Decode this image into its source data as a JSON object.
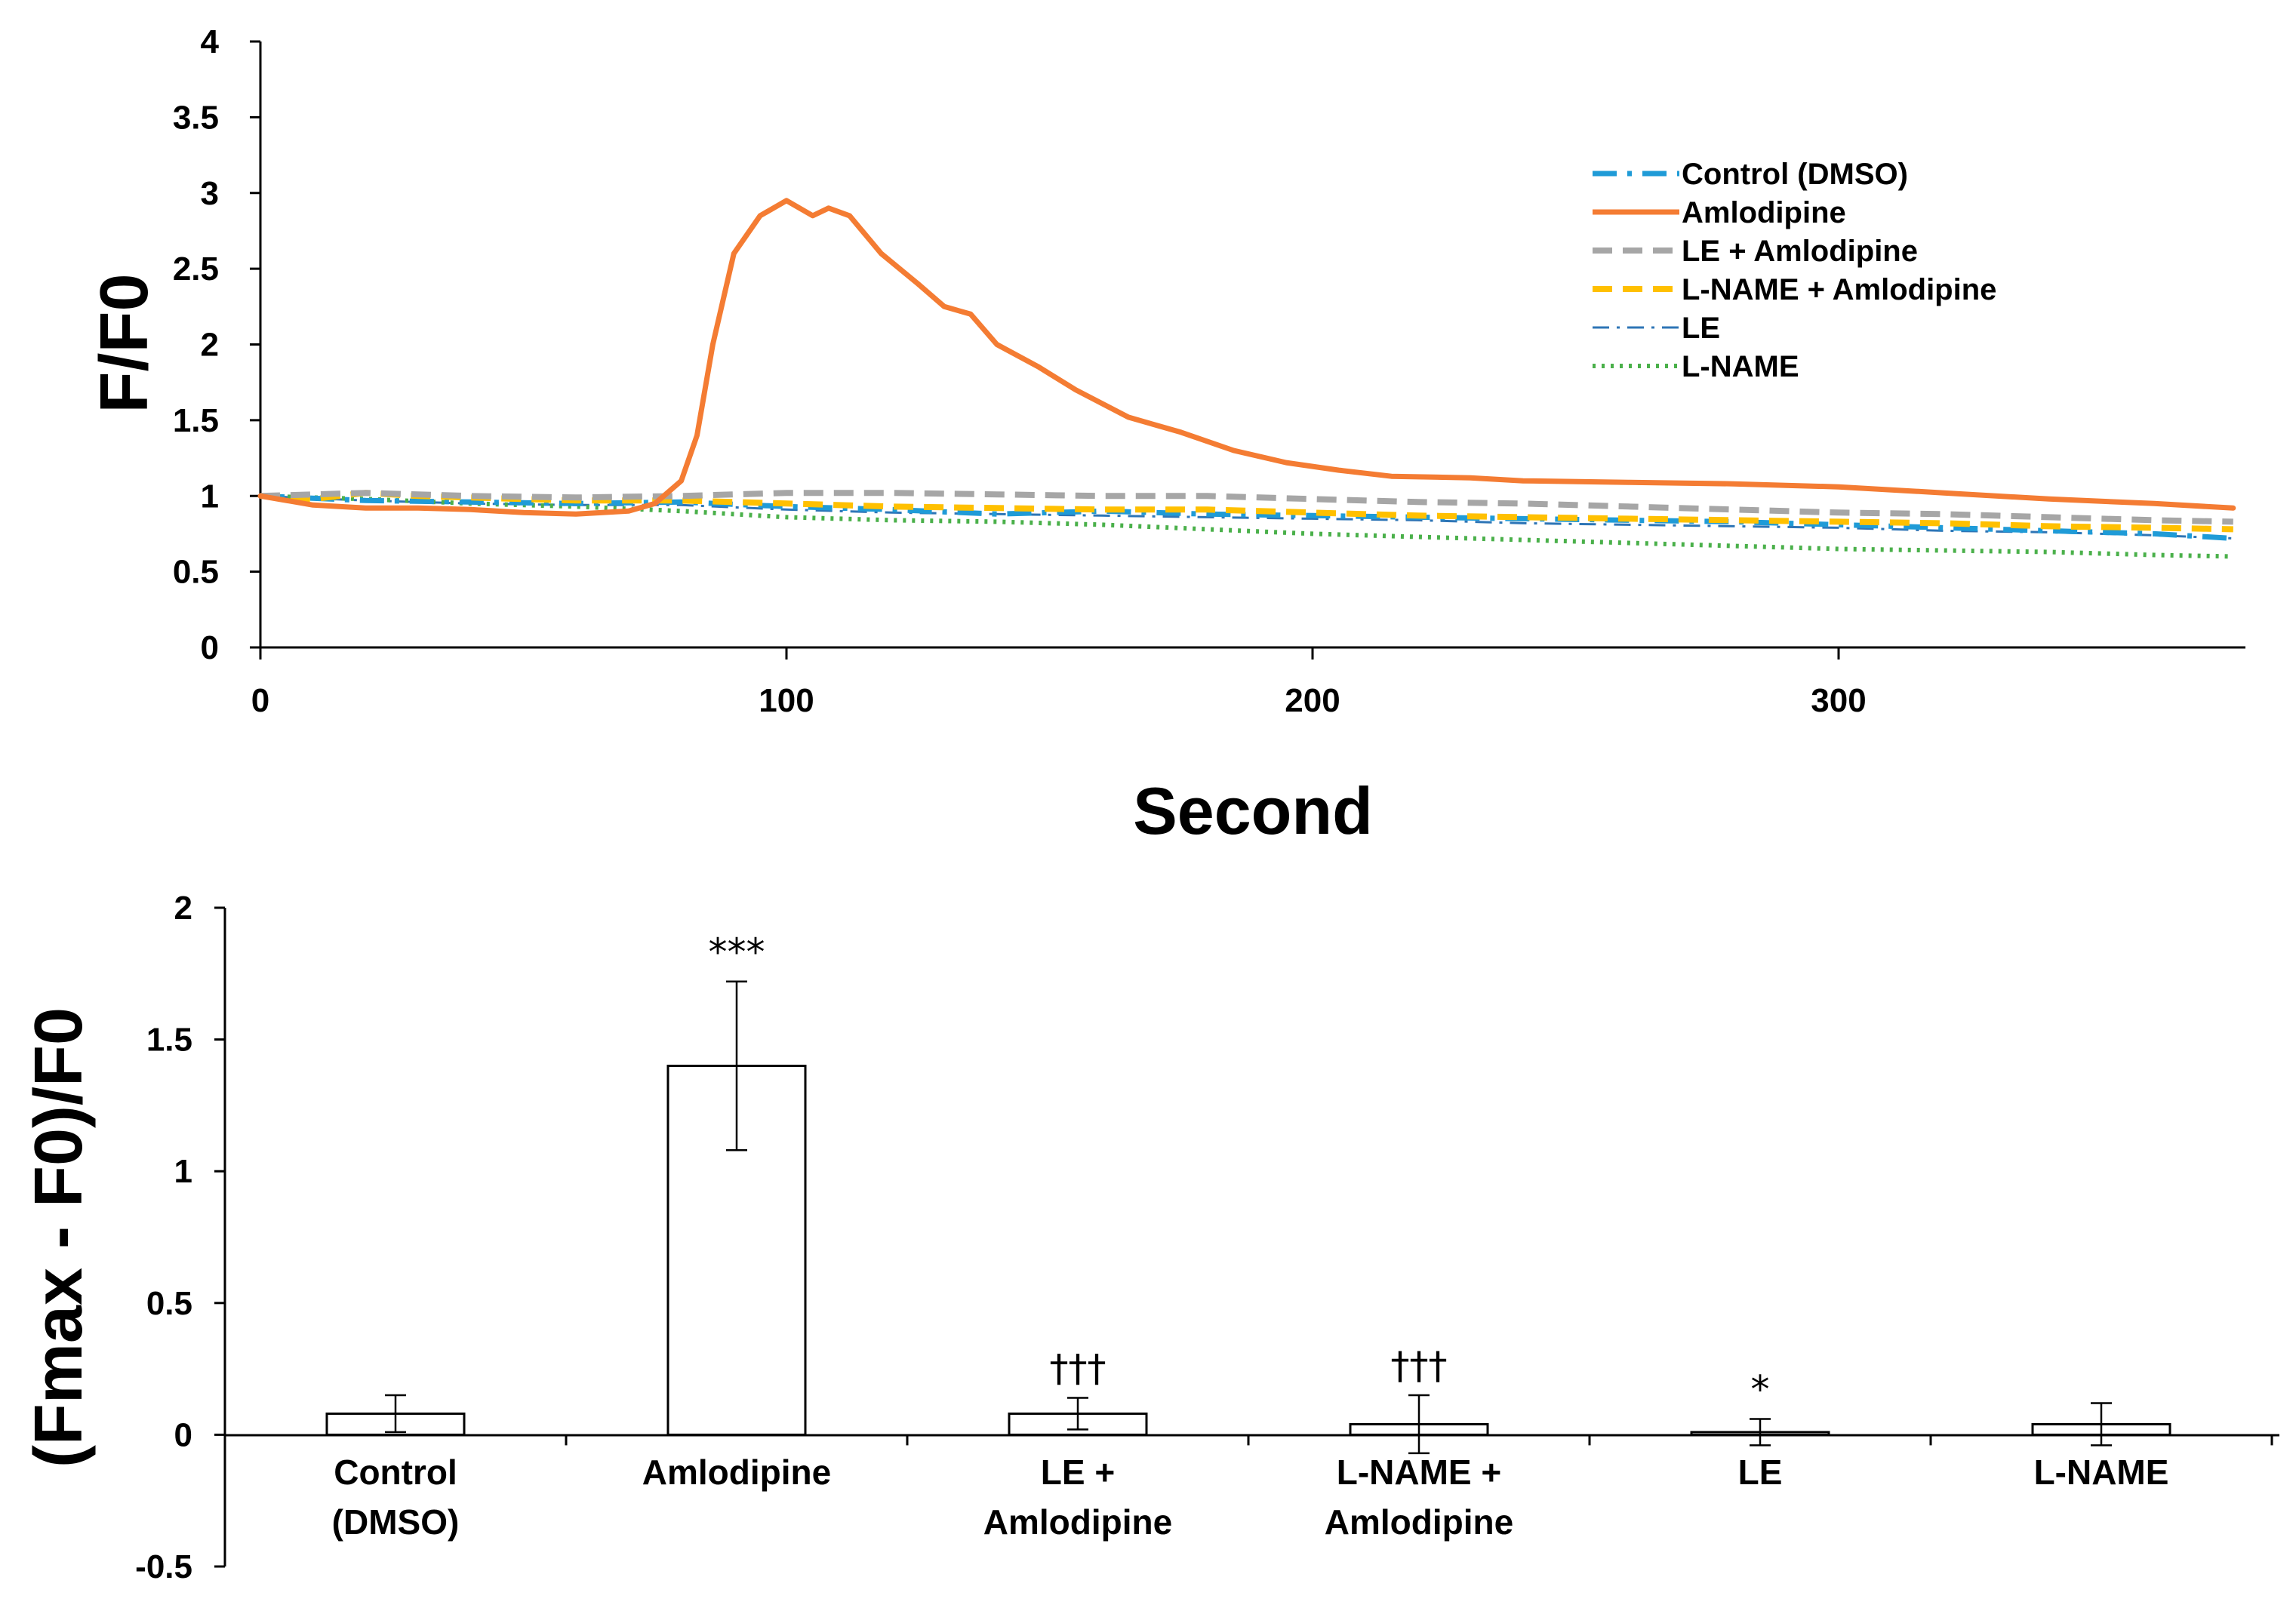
{
  "chart_data": [
    {
      "type": "line",
      "xlabel": "Second",
      "ylabel": "F/F0",
      "xlim": [
        0,
        380
      ],
      "ylim": [
        0,
        4
      ],
      "xticks": [
        "0",
        "100",
        "200",
        "300"
      ],
      "yticks": [
        "0",
        "0.5",
        "1",
        "1.5",
        "2",
        "2.5",
        "3",
        "3.5",
        "4"
      ],
      "legend_position": "top-right",
      "series": [
        {
          "name": "Control (DMSO)",
          "color": "#1f9bd7",
          "style": "dash-dot",
          "points": [
            [
              0,
              1.0
            ],
            [
              20,
              0.97
            ],
            [
              40,
              0.96
            ],
            [
              60,
              0.95
            ],
            [
              80,
              0.96
            ],
            [
              100,
              0.93
            ],
            [
              120,
              0.91
            ],
            [
              140,
              0.88
            ],
            [
              160,
              0.9
            ],
            [
              180,
              0.88
            ],
            [
              200,
              0.87
            ],
            [
              220,
              0.86
            ],
            [
              240,
              0.85
            ],
            [
              260,
              0.84
            ],
            [
              280,
              0.83
            ],
            [
              300,
              0.81
            ],
            [
              320,
              0.79
            ],
            [
              340,
              0.77
            ],
            [
              360,
              0.75
            ],
            [
              375,
              0.72
            ]
          ]
        },
        {
          "name": "Amlodipine",
          "color": "#f47c33",
          "style": "solid",
          "points": [
            [
              0,
              1.0
            ],
            [
              10,
              0.94
            ],
            [
              20,
              0.92
            ],
            [
              30,
              0.92
            ],
            [
              40,
              0.91
            ],
            [
              50,
              0.89
            ],
            [
              60,
              0.88
            ],
            [
              70,
              0.9
            ],
            [
              75,
              0.95
            ],
            [
              80,
              1.1
            ],
            [
              83,
              1.4
            ],
            [
              86,
              2.0
            ],
            [
              90,
              2.6
            ],
            [
              95,
              2.85
            ],
            [
              100,
              2.95
            ],
            [
              105,
              2.85
            ],
            [
              108,
              2.9
            ],
            [
              112,
              2.85
            ],
            [
              118,
              2.6
            ],
            [
              125,
              2.4
            ],
            [
              130,
              2.25
            ],
            [
              135,
              2.2
            ],
            [
              140,
              2.0
            ],
            [
              148,
              1.85
            ],
            [
              155,
              1.7
            ],
            [
              165,
              1.52
            ],
            [
              175,
              1.42
            ],
            [
              185,
              1.3
            ],
            [
              195,
              1.22
            ],
            [
              205,
              1.17
            ],
            [
              215,
              1.13
            ],
            [
              230,
              1.12
            ],
            [
              240,
              1.1
            ],
            [
              260,
              1.09
            ],
            [
              280,
              1.08
            ],
            [
              300,
              1.06
            ],
            [
              320,
              1.02
            ],
            [
              340,
              0.98
            ],
            [
              360,
              0.95
            ],
            [
              375,
              0.92
            ]
          ]
        },
        {
          "name": "LE + Amlodipine",
          "color": "#a6a6a6",
          "style": "dashed",
          "points": [
            [
              0,
              1.0
            ],
            [
              20,
              1.02
            ],
            [
              40,
              1.0
            ],
            [
              60,
              0.99
            ],
            [
              80,
              1.0
            ],
            [
              100,
              1.02
            ],
            [
              120,
              1.02
            ],
            [
              140,
              1.01
            ],
            [
              160,
              1.0
            ],
            [
              180,
              1.0
            ],
            [
              200,
              0.98
            ],
            [
              220,
              0.96
            ],
            [
              240,
              0.95
            ],
            [
              260,
              0.93
            ],
            [
              280,
              0.91
            ],
            [
              300,
              0.89
            ],
            [
              320,
              0.88
            ],
            [
              340,
              0.86
            ],
            [
              360,
              0.84
            ],
            [
              375,
              0.83
            ]
          ]
        },
        {
          "name": "L-NAME + Amlodipine",
          "color": "#ffc000",
          "style": "dashed",
          "points": [
            [
              0,
              1.0
            ],
            [
              10,
              0.98
            ],
            [
              20,
              1.02
            ],
            [
              30,
              1.0
            ],
            [
              40,
              0.99
            ],
            [
              60,
              0.97
            ],
            [
              80,
              0.97
            ],
            [
              100,
              0.95
            ],
            [
              120,
              0.93
            ],
            [
              140,
              0.92
            ],
            [
              160,
              0.91
            ],
            [
              180,
              0.91
            ],
            [
              200,
              0.89
            ],
            [
              220,
              0.87
            ],
            [
              240,
              0.86
            ],
            [
              260,
              0.85
            ],
            [
              280,
              0.84
            ],
            [
              300,
              0.83
            ],
            [
              320,
              0.82
            ],
            [
              340,
              0.8
            ],
            [
              360,
              0.79
            ],
            [
              375,
              0.78
            ]
          ]
        },
        {
          "name": "LE",
          "color": "#2e75b6",
          "style": "dash-dot-thin",
          "points": [
            [
              0,
              1.0
            ],
            [
              20,
              0.97
            ],
            [
              40,
              0.95
            ],
            [
              60,
              0.94
            ],
            [
              80,
              0.94
            ],
            [
              100,
              0.91
            ],
            [
              120,
              0.89
            ],
            [
              140,
              0.88
            ],
            [
              160,
              0.87
            ],
            [
              180,
              0.86
            ],
            [
              200,
              0.85
            ],
            [
              220,
              0.84
            ],
            [
              240,
              0.82
            ],
            [
              260,
              0.81
            ],
            [
              280,
              0.8
            ],
            [
              300,
              0.79
            ],
            [
              320,
              0.77
            ],
            [
              340,
              0.76
            ],
            [
              360,
              0.74
            ],
            [
              375,
              0.72
            ]
          ]
        },
        {
          "name": "L-NAME",
          "color": "#4ab04a",
          "style": "dotted",
          "points": [
            [
              0,
              1.0
            ],
            [
              20,
              0.98
            ],
            [
              40,
              0.95
            ],
            [
              60,
              0.93
            ],
            [
              80,
              0.9
            ],
            [
              100,
              0.86
            ],
            [
              120,
              0.84
            ],
            [
              140,
              0.83
            ],
            [
              160,
              0.81
            ],
            [
              180,
              0.78
            ],
            [
              200,
              0.75
            ],
            [
              220,
              0.73
            ],
            [
              240,
              0.71
            ],
            [
              260,
              0.69
            ],
            [
              280,
              0.67
            ],
            [
              300,
              0.65
            ],
            [
              320,
              0.64
            ],
            [
              340,
              0.63
            ],
            [
              360,
              0.61
            ],
            [
              375,
              0.6
            ]
          ]
        }
      ]
    },
    {
      "type": "bar",
      "ylabel": "(Fmax - F0)/F0",
      "ylim": [
        -0.5,
        2
      ],
      "yticks": [
        "-0.5",
        "0",
        "0.5",
        "1",
        "1.5",
        "2"
      ],
      "categories": [
        {
          "line1": "Control",
          "line2": "(DMSO)"
        },
        {
          "line1": "Amlodipine",
          "line2": ""
        },
        {
          "line1": "LE +",
          "line2": "Amlodipine"
        },
        {
          "line1": "L-NAME +",
          "line2": "Amlodipine"
        },
        {
          "line1": "LE",
          "line2": ""
        },
        {
          "line1": "L-NAME",
          "line2": ""
        }
      ],
      "values": [
        0.08,
        1.4,
        0.08,
        0.04,
        0.01,
        0.04
      ],
      "errors": [
        0.07,
        0.32,
        0.06,
        0.11,
        0.05,
        0.08
      ],
      "significance": [
        "",
        "***",
        "†††",
        "†††",
        "*",
        ""
      ]
    }
  ]
}
